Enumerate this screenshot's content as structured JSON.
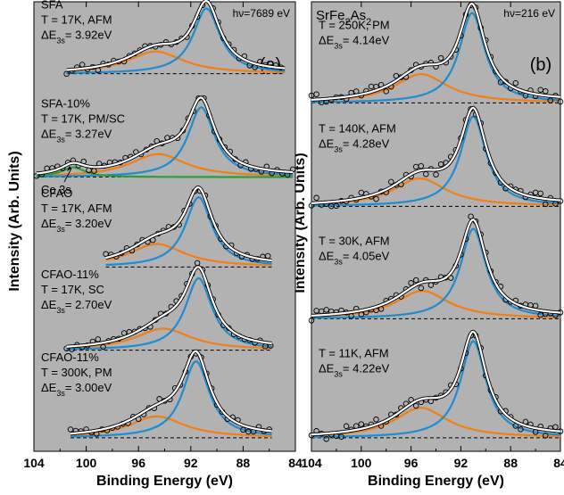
{
  "ylabel": "Intensity (Arb. Units)",
  "colors": {
    "panel_bg": "#b2b2b2",
    "data_curve": "#ffffff",
    "data_curve_outline": "#000000",
    "main_peak": "#1f8ccf",
    "satellite_peak": "#f07f17",
    "co_peak": "#2e9c3c",
    "marker": "#000000"
  },
  "chart_data": [
    {
      "id": "a",
      "type": "line",
      "panel_label": "(a)",
      "title": "",
      "hv": "hν=7689 eV",
      "xlabel": "Binding Energy (eV)",
      "xlim": [
        104,
        84
      ],
      "x_ticks": [
        "104",
        "100",
        "96",
        "92",
        "88",
        "84"
      ],
      "x_tick_values": [
        104,
        100,
        96,
        92,
        88,
        84
      ],
      "spectra": [
        {
          "lines": [
            "SFA",
            "T = 17K, AFM",
            "ΔE3s= 3.92eV"
          ],
          "main_peak_ev": 90.8,
          "satellite_ev": 94.7,
          "satellite_rel": 0.34,
          "baseline": 0.84,
          "height": 0.145,
          "x_start": 101.5,
          "x_end": 84.8,
          "co3s": false
        },
        {
          "lines": [
            "SFA-10%",
            "T = 17K, PM/SC",
            "ΔE3s= 3.27eV"
          ],
          "main_peak_ev": 91.2,
          "satellite_ev": 94.5,
          "satellite_rel": 0.33,
          "baseline": 0.61,
          "height": 0.155,
          "x_start": 103.8,
          "x_end": 84.2,
          "co3s": true,
          "co3s_label": "Co 3s",
          "co3s_ev": 101.0
        },
        {
          "lines": [
            "CFAO",
            "T = 17K, AFM",
            "ΔE3s= 3.20eV"
          ],
          "main_peak_ev": 91.4,
          "satellite_ev": 94.6,
          "satellite_rel": 0.33,
          "baseline": 0.41,
          "height": 0.155,
          "x_start": 98.5,
          "x_end": 85.8,
          "co3s": false
        },
        {
          "lines": [
            "CFAO-11%",
            "T = 17K, SC",
            "ΔE3s= 2.70eV"
          ],
          "main_peak_ev": 91.4,
          "satellite_ev": 94.1,
          "satellite_rel": 0.3,
          "baseline": 0.225,
          "height": 0.16,
          "x_start": 101.5,
          "x_end": 85.8,
          "co3s": false
        },
        {
          "lines": [
            "CFAO-11%",
            "T = 300K, PM",
            "ΔE3s= 3.00eV"
          ],
          "main_peak_ev": 91.6,
          "satellite_ev": 94.6,
          "satellite_rel": 0.28,
          "baseline": 0.03,
          "height": 0.17,
          "x_start": 101.2,
          "x_end": 85.8,
          "co3s": false
        }
      ]
    },
    {
      "id": "b",
      "type": "line",
      "panel_label": "(b)",
      "title": "SrFe2As2",
      "hv": "hν=216 eV",
      "xlabel": "Binding Energy (eV)",
      "xlim": [
        104,
        84
      ],
      "x_ticks": [
        "104",
        "100",
        "96",
        "92",
        "88",
        "84"
      ],
      "x_tick_values": [
        104,
        100,
        96,
        92,
        88,
        84
      ],
      "spectra": [
        {
          "lines": [
            "T = 250K, PM",
            "ΔE3s= 4.14eV"
          ],
          "main_peak_ev": 91.1,
          "satellite_ev": 95.2,
          "satellite_rel": 0.32,
          "baseline": 0.775,
          "height": 0.2,
          "x_start": 104.0,
          "x_end": 84.0,
          "co3s": false
        },
        {
          "lines": [
            "T = 140K, AFM",
            "ΔE3s= 4.28eV"
          ],
          "main_peak_ev": 91.0,
          "satellite_ev": 95.3,
          "satellite_rel": 0.31,
          "baseline": 0.545,
          "height": 0.2,
          "x_start": 104.0,
          "x_end": 84.0,
          "co3s": false
        },
        {
          "lines": [
            "T = 30K, AFM",
            "ΔE3s= 4.05eV"
          ],
          "main_peak_ev": 91.0,
          "satellite_ev": 95.1,
          "satellite_rel": 0.31,
          "baseline": 0.295,
          "height": 0.2,
          "x_start": 104.0,
          "x_end": 84.0,
          "co3s": false
        },
        {
          "lines": [
            "T = 11K, AFM",
            "ΔE3s= 4.22eV"
          ],
          "main_peak_ev": 91.0,
          "satellite_ev": 95.2,
          "satellite_rel": 0.31,
          "baseline": 0.03,
          "height": 0.215,
          "x_start": 104.0,
          "x_end": 84.0,
          "co3s": false
        }
      ]
    }
  ]
}
